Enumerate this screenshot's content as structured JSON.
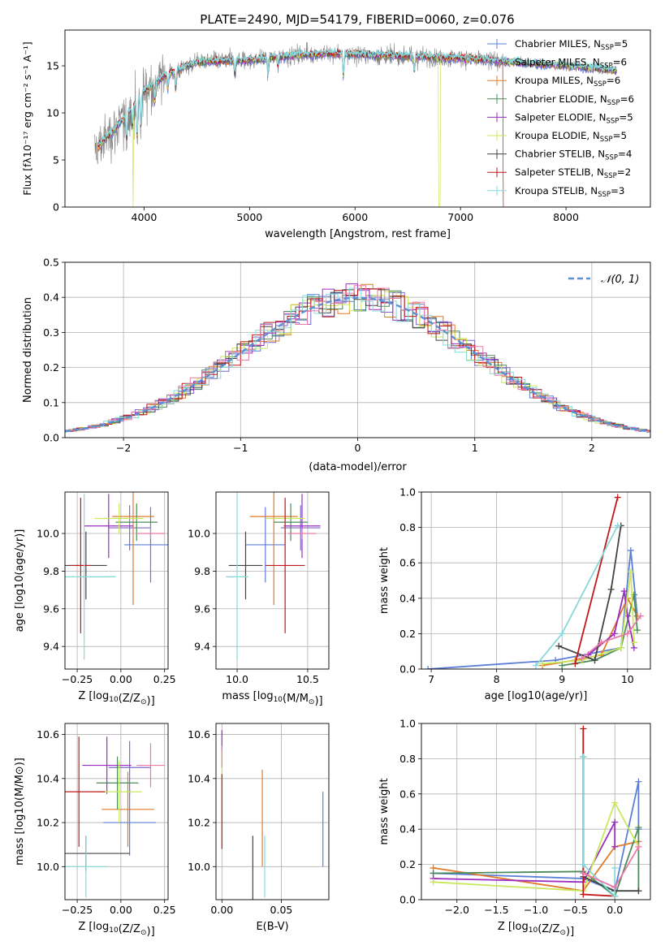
{
  "figure": {
    "title": "PLATE=2490, MJD=54179, FIBERID=0060, z=0.076"
  },
  "colors": {
    "Chabrier MILES": "#5b7fd6",
    "Salpeter MILES": "#7d69c9",
    "Kroupa MILES": "#e07b2a",
    "Chabrier ELODIE": "#4c8c5c",
    "Salpeter ELODIE": "#9c2cc0",
    "Kroupa ELODIE": "#c9e85a",
    "Chabrier STELIB": "#444444",
    "Salpeter STELIB": "#c01818",
    "Kroupa STELIB": "#86d8dc",
    "pink": "#e87aa8",
    "normal": "#5b8fd6"
  },
  "chart_data": [
    {
      "id": "spectrum",
      "type": "line",
      "title": "PLATE=2490, MJD=54179, FIBERID=0060, z=0.076",
      "xlabel": "wavelength [Angstrom, rest frame]",
      "ylabel": "Flux [fλ10⁻¹⁷ erg cm⁻² s⁻¹ A⁻¹]",
      "xlim": [
        3250,
        8800
      ],
      "ylim": [
        0,
        18.8
      ],
      "xticks": [
        4000,
        5000,
        6000,
        7000,
        8000
      ],
      "yticks": [
        0,
        5,
        10,
        15
      ],
      "legend_position": "top-right",
      "legend": [
        {
          "base": "Chabrier MILES, N",
          "sub": "SSP",
          "post": "=5"
        },
        {
          "base": "Salpeter MILES, N",
          "sub": "SSP",
          "post": "=6"
        },
        {
          "base": "Kroupa MILES, N",
          "sub": "SSP",
          "post": "=6"
        },
        {
          "base": "Chabrier ELODIE, N",
          "sub": "SSP",
          "post": "=6"
        },
        {
          "base": "Salpeter ELODIE, N",
          "sub": "SSP",
          "post": "=5"
        },
        {
          "base": "Kroupa ELODIE, N",
          "sub": "SSP",
          "post": "=5"
        },
        {
          "base": "Chabrier STELIB, N",
          "sub": "SSP",
          "post": "=4"
        },
        {
          "base": "Salpeter STELIB, N",
          "sub": "SSP",
          "post": "=2"
        },
        {
          "base": "Kroupa STELIB, N",
          "sub": "SSP",
          "post": "=3"
        }
      ],
      "continuum": {
        "x": [
          3530,
          3700,
          3850,
          4000,
          4200,
          4500,
          5000,
          5500,
          5900,
          6200,
          6500,
          7000,
          7500,
          8000,
          8500
        ],
        "y": [
          6.0,
          8.0,
          10.0,
          12.3,
          14.0,
          15.4,
          15.6,
          16.2,
          16.3,
          16.1,
          16.0,
          15.8,
          15.4,
          15.0,
          14.5
        ]
      }
    },
    {
      "id": "residuals",
      "type": "line",
      "xlabel": "(data-model)/error",
      "ylabel": "Normed distribution",
      "xlim": [
        -2.5,
        2.5
      ],
      "ylim": [
        0,
        0.5
      ],
      "xticks": [
        -2,
        -1,
        0,
        1,
        2
      ],
      "yticks": [
        0.0,
        0.1,
        0.2,
        0.3,
        0.4,
        0.5
      ],
      "legend_position": "top-right",
      "legend": [
        "𝒩(0, 1)"
      ],
      "bin_width": 0.1
    },
    {
      "id": "age_vs_Z",
      "type": "scatter",
      "xlabel_base": "Z [log",
      "xlabel_sub": "10",
      "xlabel_post": "(Z/Z",
      "xlabel_sub2": "⊙",
      "xlabel_end": ")]",
      "ylabel": "age  [log10(age/yr)]",
      "xlim": [
        -0.32,
        0.27
      ],
      "ylim": [
        9.28,
        10.22
      ],
      "xticks": [
        -0.25,
        0.0,
        0.25
      ],
      "yticks": [
        9.4,
        9.6,
        9.8,
        10.0
      ],
      "points": [
        {
          "model": "Chabrier MILES",
          "x": 0.17,
          "xerr": 0.15,
          "y": 9.94,
          "yerr": 0.2
        },
        {
          "model": "Salpeter MILES",
          "x": 0.05,
          "xerr": 0.12,
          "y": 10.03,
          "yerr": 0.12
        },
        {
          "model": "Kroupa MILES",
          "x": 0.07,
          "xerr": 0.12,
          "y": 10.09,
          "yerr": 0.47
        },
        {
          "model": "Chabrier ELODIE",
          "x": 0.09,
          "xerr": 0.12,
          "y": 10.06,
          "yerr": 0.1
        },
        {
          "model": "Salpeter ELODIE",
          "x": -0.07,
          "xerr": 0.14,
          "y": 10.04,
          "yerr": 0.17
        },
        {
          "model": "Kroupa ELODIE",
          "x": -0.01,
          "xerr": 0.14,
          "y": 10.08,
          "yerr": 0.08
        },
        {
          "model": "Chabrier STELIB",
          "x": -0.2,
          "xerr": 0.12,
          "y": 9.83,
          "yerr": 0.18
        },
        {
          "model": "Salpeter STELIB",
          "x": -0.23,
          "xerr": 0.06,
          "y": 9.83,
          "yerr": 0.36
        },
        {
          "model": "Kroupa STELIB",
          "x": -0.21,
          "xerr": 0.18,
          "y": 9.77,
          "yerr": 0.44
        },
        {
          "model": "pink",
          "x": 0.17,
          "xerr": 0.08,
          "y": 10.0,
          "yerr": 0.03
        }
      ]
    },
    {
      "id": "age_vs_mass",
      "type": "scatter",
      "xlabel_base": "mass [log",
      "xlabel_sub": "10",
      "xlabel_post": "(M/M",
      "xlabel_sub2": "⊙",
      "xlabel_end": ")]",
      "xlim": [
        9.85,
        10.65
      ],
      "ylim": [
        9.28,
        10.22
      ],
      "xticks": [
        10.0,
        10.5
      ],
      "yticks": [
        9.4,
        9.6,
        9.8,
        10.0
      ],
      "points": [
        {
          "model": "Chabrier MILES",
          "x": 10.2,
          "xerr": 0.14,
          "y": 9.94,
          "yerr": 0.2
        },
        {
          "model": "Salpeter MILES",
          "x": 10.45,
          "xerr": 0.14,
          "y": 10.03,
          "yerr": 0.12
        },
        {
          "model": "Kroupa MILES",
          "x": 10.26,
          "xerr": 0.17,
          "y": 10.09,
          "yerr": 0.47
        },
        {
          "model": "Chabrier ELODIE",
          "x": 10.38,
          "xerr": 0.12,
          "y": 10.06,
          "yerr": 0.1
        },
        {
          "model": "Salpeter ELODIE",
          "x": 10.46,
          "xerr": 0.13,
          "y": 10.04,
          "yerr": 0.17
        },
        {
          "model": "Kroupa ELODIE",
          "x": 10.34,
          "xerr": 0.14,
          "y": 10.08,
          "yerr": 0.08
        },
        {
          "model": "Chabrier STELIB",
          "x": 10.06,
          "xerr": 0.12,
          "y": 9.83,
          "yerr": 0.18
        },
        {
          "model": "Salpeter STELIB",
          "x": 10.34,
          "xerr": 0.14,
          "y": 9.83,
          "yerr": 0.36
        },
        {
          "model": "Kroupa STELIB",
          "x": 10.0,
          "xerr": 0.08,
          "y": 9.77,
          "yerr": 0.44
        },
        {
          "model": "pink",
          "x": 10.46,
          "xerr": 0.1,
          "y": 10.0,
          "yerr": 0.03
        }
      ]
    },
    {
      "id": "mass_vs_Z",
      "type": "scatter",
      "xlabel_base": "Z [log",
      "xlabel_sub": "10",
      "xlabel_post": "(Z/Z",
      "xlabel_sub2": "⊙",
      "xlabel_end": ")]",
      "ylabel": "mass [log10(M/M⊙)]",
      "xlim": [
        -0.32,
        0.27
      ],
      "ylim": [
        9.85,
        10.65
      ],
      "xticks": [
        -0.25,
        0.0,
        0.25
      ],
      "yticks": [
        10.0,
        10.2,
        10.4,
        10.6
      ],
      "points": [
        {
          "model": "Chabrier MILES",
          "x": 0.05,
          "xerr": 0.15,
          "y": 10.2,
          "yerr": 0.15
        },
        {
          "model": "Salpeter MILES",
          "x": 0.05,
          "xerr": 0.12,
          "y": 10.45,
          "yerr": 0.12
        },
        {
          "model": "Kroupa MILES",
          "x": 0.04,
          "xerr": 0.15,
          "y": 10.26,
          "yerr": 0.17
        },
        {
          "model": "Chabrier ELODIE",
          "x": -0.02,
          "xerr": 0.12,
          "y": 10.38,
          "yerr": 0.12
        },
        {
          "model": "Salpeter ELODIE",
          "x": -0.08,
          "xerr": 0.14,
          "y": 10.46,
          "yerr": 0.13
        },
        {
          "model": "Kroupa ELODIE",
          "x": -0.01,
          "xerr": 0.13,
          "y": 10.34,
          "yerr": 0.14
        },
        {
          "model": "Chabrier STELIB",
          "x": -0.2,
          "xerr": 0.25,
          "y": 10.06,
          "yerr": 0.08
        },
        {
          "model": "Salpeter STELIB",
          "x": -0.24,
          "xerr": 0.15,
          "y": 10.34,
          "yerr": 0.25
        },
        {
          "model": "Kroupa STELIB",
          "x": -0.2,
          "xerr": 0.12,
          "y": 10.0,
          "yerr": 0.14
        },
        {
          "model": "pink",
          "x": 0.17,
          "xerr": 0.08,
          "y": 10.46,
          "yerr": 0.1
        }
      ]
    },
    {
      "id": "mass_vs_EBV",
      "type": "scatter",
      "xlabel": "E(B-V)",
      "xlim": [
        -0.005,
        0.09
      ],
      "ylim": [
        9.85,
        10.65
      ],
      "xticks": [
        0.0,
        0.05
      ],
      "yticks": [
        10.0,
        10.2,
        10.4,
        10.6
      ],
      "points": [
        {
          "model": "Chabrier MILES",
          "x": 0.085,
          "xerr": 0,
          "y": 10.17,
          "yerr": 0.17
        },
        {
          "model": "Kroupa MILES",
          "x": 0.034,
          "xerr": 0,
          "y": 10.22,
          "yerr": 0.22
        },
        {
          "model": "Salpeter ELODIE",
          "x": 0.0,
          "xerr": 0,
          "y": 10.57,
          "yerr": 0.05
        },
        {
          "model": "Kroupa ELODIE",
          "x": 0.0,
          "xerr": 0,
          "y": 10.45,
          "yerr": 0.08
        },
        {
          "model": "Chabrier STELIB",
          "x": 0.026,
          "xerr": 0,
          "y": 9.99,
          "yerr": 0.15
        },
        {
          "model": "Salpeter STELIB",
          "x": 0.0,
          "xerr": 0,
          "y": 10.25,
          "yerr": 0.17
        },
        {
          "model": "Kroupa STELIB",
          "x": 0.036,
          "xerr": 0,
          "y": 10.0,
          "yerr": 0.14
        },
        {
          "model": "pink",
          "x": 0.0,
          "xerr": 0,
          "y": 10.5,
          "yerr": 0.05
        }
      ]
    },
    {
      "id": "weight_vs_age",
      "type": "line",
      "xlabel": "age  [log10(age/yr)]",
      "ylabel": "mass weight",
      "xlim": [
        6.85,
        10.35
      ],
      "ylim": [
        0,
        1.0
      ],
      "xticks": [
        7,
        8,
        9,
        10
      ],
      "yticks": [
        0.0,
        0.2,
        0.4,
        0.6,
        0.8,
        1.0
      ],
      "series": [
        {
          "model": "Chabrier MILES",
          "x": [
            6.95,
            8.9,
            9.9,
            10.05,
            10.15
          ],
          "y": [
            0.0,
            0.05,
            0.12,
            0.67,
            0.3
          ]
        },
        {
          "model": "Kroupa MILES",
          "x": [
            8.7,
            9.2,
            9.6,
            10.0,
            10.15
          ],
          "y": [
            0.02,
            0.05,
            0.08,
            0.4,
            0.3
          ]
        },
        {
          "model": "Chabrier ELODIE",
          "x": [
            9.0,
            9.5,
            9.9,
            10.1,
            10.15
          ],
          "y": [
            0.02,
            0.05,
            0.12,
            0.42,
            0.22
          ]
        },
        {
          "model": "Salpeter ELODIE",
          "x": [
            9.4,
            9.8,
            9.95,
            10.0,
            10.1
          ],
          "y": [
            0.08,
            0.2,
            0.44,
            0.3,
            0.12
          ]
        },
        {
          "model": "Kroupa ELODIE",
          "x": [
            8.7,
            9.3,
            9.9,
            10.05,
            10.1
          ],
          "y": [
            0.03,
            0.05,
            0.12,
            0.55,
            0.15
          ]
        },
        {
          "model": "Chabrier STELIB",
          "x": [
            8.95,
            9.5,
            9.75,
            9.9
          ],
          "y": [
            0.13,
            0.05,
            0.45,
            0.81
          ]
        },
        {
          "model": "Salpeter STELIB",
          "x": [
            9.2,
            9.85
          ],
          "y": [
            0.03,
            0.97
          ]
        },
        {
          "model": "Kroupa STELIB",
          "x": [
            8.6,
            9.0,
            9.85
          ],
          "y": [
            0.02,
            0.2,
            0.81
          ]
        },
        {
          "model": "pink",
          "x": [
            9.3,
            9.6,
            10.0,
            10.2
          ],
          "y": [
            0.06,
            0.15,
            0.2,
            0.3
          ]
        }
      ]
    },
    {
      "id": "weight_vs_Z",
      "type": "line",
      "xlabel_base": "Z [log",
      "xlabel_sub": "10",
      "xlabel_post": "(Z/Z",
      "xlabel_sub2": "⊙",
      "xlabel_end": ")]",
      "ylabel": "mass weight",
      "xlim": [
        -2.45,
        0.45
      ],
      "ylim": [
        0,
        1.0
      ],
      "xticks": [
        -2.0,
        -1.5,
        -1.0,
        -0.5,
        0.0
      ],
      "yticks": [
        0.0,
        0.2,
        0.4,
        0.6,
        0.8,
        1.0
      ],
      "series": [
        {
          "model": "Chabrier MILES",
          "x": [
            -2.3,
            -0.4,
            0.0,
            0.3,
            0.3
          ],
          "y": [
            0.15,
            0.12,
            0.05,
            0.67,
            0.4
          ]
        },
        {
          "model": "Kroupa MILES",
          "x": [
            -2.3,
            -0.4,
            0.0,
            0.3
          ],
          "y": [
            0.18,
            0.05,
            0.3,
            0.33
          ]
        },
        {
          "model": "Chabrier ELODIE",
          "x": [
            -2.3,
            -0.4,
            0.0,
            0.3,
            0.3
          ],
          "y": [
            0.15,
            0.16,
            0.02,
            0.41,
            0.05
          ]
        },
        {
          "model": "Salpeter ELODIE",
          "x": [
            -2.3,
            -0.4,
            0.0,
            0.0
          ],
          "y": [
            0.12,
            0.1,
            0.44,
            0.3
          ]
        },
        {
          "model": "Kroupa ELODIE",
          "x": [
            -2.3,
            -0.4,
            0.0,
            0.3
          ],
          "y": [
            0.1,
            0.05,
            0.55,
            0.3
          ]
        },
        {
          "model": "Chabrier STELIB",
          "x": [
            -0.4,
            -0.4,
            0.0,
            0.3
          ],
          "y": [
            0.81,
            0.13,
            0.05,
            0.05
          ]
        },
        {
          "model": "Salpeter STELIB",
          "x": [
            -0.4,
            -0.4,
            0.0
          ],
          "y": [
            0.97,
            0.03,
            0.02
          ]
        },
        {
          "model": "Kroupa STELIB",
          "x": [
            -0.4,
            -0.4,
            0.0,
            0.0
          ],
          "y": [
            0.81,
            0.2,
            0.02,
            0.18
          ]
        },
        {
          "model": "pink",
          "x": [
            -0.4,
            0.0,
            0.3
          ],
          "y": [
            0.15,
            0.07,
            0.3
          ]
        }
      ]
    }
  ]
}
